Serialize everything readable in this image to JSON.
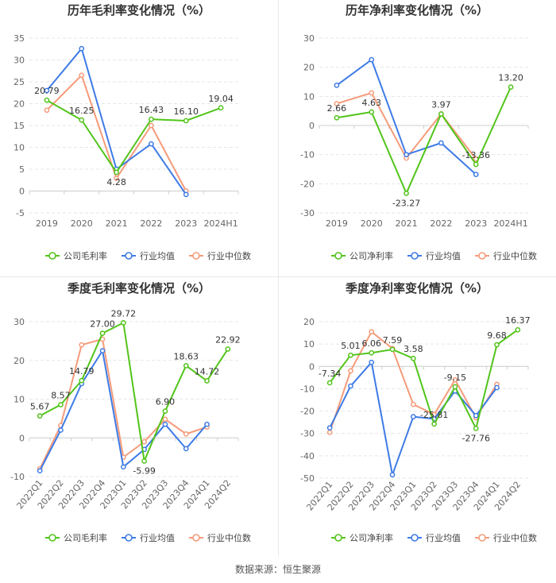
{
  "series_colors": {
    "company": "#52c41a",
    "industry_avg": "#3e7be6",
    "industry_median": "#f59b7a"
  },
  "source": "数据来源：恒生聚源",
  "chart_data": [
    {
      "type": "line",
      "title": "历年毛利率变化情况（%）",
      "categories": [
        "2019",
        "2020",
        "2021",
        "2022",
        "2023",
        "2024H1"
      ],
      "ylim": [
        -5,
        35
      ],
      "yticks": [
        -5,
        0,
        5,
        10,
        15,
        20,
        25,
        30,
        35
      ],
      "rotate_labels": false,
      "label_series": 0,
      "label_offsets": [
        -1,
        -1,
        1,
        -1,
        -1,
        -1
      ],
      "series": [
        {
          "name": "公司毛利率",
          "color": "#52c41a",
          "values": [
            20.79,
            16.25,
            4.28,
            16.43,
            16.1,
            19.04
          ],
          "labels": [
            "20.79",
            "16.25",
            "4.28",
            "16.43",
            "16.10",
            "19.04"
          ]
        },
        {
          "name": "行业均值",
          "color": "#3e7be6",
          "values": [
            23.0,
            32.6,
            5.0,
            10.8,
            -0.8,
            null
          ]
        },
        {
          "name": "行业中位数",
          "color": "#f59b7a",
          "values": [
            18.5,
            26.5,
            2.9,
            15.0,
            0.0,
            null
          ]
        }
      ]
    },
    {
      "type": "line",
      "title": "历年净利率变化情况（%）",
      "categories": [
        "2019",
        "2020",
        "2021",
        "2022",
        "2023",
        "2024H1"
      ],
      "ylim": [
        -30,
        30
      ],
      "yticks": [
        -30,
        -20,
        -10,
        0,
        10,
        20,
        30
      ],
      "rotate_labels": false,
      "label_series": 0,
      "label_offsets": [
        -1,
        -1,
        1,
        -1,
        -1,
        -1
      ],
      "series": [
        {
          "name": "公司净利率",
          "color": "#52c41a",
          "values": [
            2.66,
            4.63,
            -23.27,
            3.97,
            -13.36,
            13.2
          ],
          "labels": [
            "2.66",
            "4.63",
            "-23.27",
            "3.97",
            "-13.36",
            "13.20"
          ]
        },
        {
          "name": "行业均值",
          "color": "#3e7be6",
          "values": [
            13.8,
            22.6,
            -10.0,
            -6.0,
            -16.8,
            null
          ]
        },
        {
          "name": "行业中位数",
          "color": "#f59b7a",
          "values": [
            7.5,
            11.2,
            -11.2,
            4.0,
            -11.5,
            null
          ]
        }
      ]
    },
    {
      "type": "line",
      "title": "季度毛利率变化情况（%）",
      "categories": [
        "2022Q1",
        "2022Q2",
        "2022Q3",
        "2022Q4",
        "2023Q1",
        "2023Q2",
        "2023Q3",
        "2023Q4",
        "2024Q1",
        "2024Q2"
      ],
      "ylim": [
        -10,
        30
      ],
      "yticks": [
        -10,
        0,
        10,
        20,
        30
      ],
      "rotate_labels": true,
      "label_series": 0,
      "label_offsets": [
        -1,
        -1,
        -1,
        -1,
        -1,
        1,
        -1,
        -1,
        -1,
        -1
      ],
      "series": [
        {
          "name": "公司毛利率",
          "color": "#52c41a",
          "values": [
            5.67,
            8.57,
            14.79,
            27.0,
            29.72,
            -5.99,
            6.9,
            18.63,
            14.72,
            22.92
          ],
          "labels": [
            "5.67",
            "8.57",
            "14.79",
            "27.00",
            "29.72",
            "-5.99",
            "6.90",
            "18.63",
            "14.72",
            "22.92"
          ]
        },
        {
          "name": "行业均值",
          "color": "#3e7be6",
          "values": [
            -8.5,
            2.0,
            14.0,
            22.5,
            -7.5,
            -3.0,
            3.5,
            -2.8,
            3.5,
            null
          ]
        },
        {
          "name": "行业中位数",
          "color": "#f59b7a",
          "values": [
            -8.0,
            3.2,
            24.0,
            25.5,
            -5.0,
            -1.0,
            4.8,
            1.0,
            2.8,
            null
          ]
        }
      ]
    },
    {
      "type": "line",
      "title": "季度净利率变化情况（%）",
      "categories": [
        "2022Q1",
        "2022Q2",
        "2022Q3",
        "2022Q4",
        "2023Q1",
        "2023Q2",
        "2023Q3",
        "2023Q4",
        "2024Q1",
        "2024Q2"
      ],
      "ylim": [
        -50,
        20
      ],
      "yticks": [
        -50,
        -40,
        -30,
        -20,
        -10,
        0,
        10,
        20
      ],
      "rotate_labels": true,
      "label_series": 0,
      "label_offsets": [
        -1,
        -1,
        -1,
        -1,
        -1,
        -1,
        -1,
        1,
        -1,
        -1
      ],
      "series": [
        {
          "name": "公司净利率",
          "color": "#52c41a",
          "values": [
            -7.34,
            5.01,
            6.06,
            7.59,
            3.58,
            -25.81,
            -9.15,
            -27.76,
            9.68,
            16.37
          ],
          "labels": [
            "-7.34",
            "5.01",
            "6.06",
            "7.59",
            "3.58",
            "-25.81",
            "-9.15",
            "-27.76",
            "9.68",
            "16.37"
          ]
        },
        {
          "name": "行业均值",
          "color": "#3e7be6",
          "values": [
            -27.5,
            -8.8,
            1.8,
            -48.5,
            -22.5,
            -23.5,
            -11.0,
            -22.0,
            -9.5,
            null
          ]
        },
        {
          "name": "行业中位数",
          "color": "#f59b7a",
          "values": [
            -29.5,
            -2.0,
            15.5,
            8.0,
            -17.0,
            -21.5,
            -6.0,
            -23.0,
            -8.0,
            null
          ]
        }
      ]
    }
  ]
}
